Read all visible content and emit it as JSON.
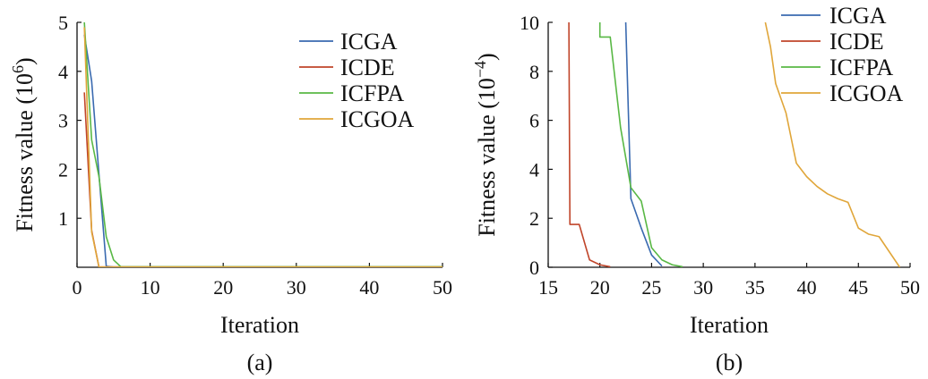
{
  "chart_data": [
    {
      "type": "line",
      "caption": "(a)",
      "xlabel": "Iteration",
      "ylabel": "Fitness value (10",
      "ylabel_exp": "6",
      "ylabel_close": ")",
      "xlim": [
        0,
        50
      ],
      "ylim": [
        0,
        5
      ],
      "xticks": [
        0,
        10,
        20,
        30,
        40,
        50
      ],
      "yticks": [
        1,
        2,
        3,
        4,
        5
      ],
      "grid": false,
      "legend": "top-right",
      "series": [
        {
          "name": "ICGA",
          "color": "#3a6ab0",
          "points": [
            [
              1,
              4.75
            ],
            [
              2,
              3.8
            ],
            [
              3,
              1.9
            ],
            [
              4,
              0.02
            ],
            [
              5,
              0.005
            ],
            [
              50,
              0.005
            ]
          ]
        },
        {
          "name": "ICDE",
          "color": "#c0452a",
          "points": [
            [
              1,
              3.57
            ],
            [
              2,
              0.75
            ],
            [
              3,
              0.005
            ],
            [
              50,
              0.005
            ]
          ]
        },
        {
          "name": "ICFPA",
          "color": "#59b845",
          "points": [
            [
              1,
              5.0
            ],
            [
              2,
              2.6
            ],
            [
              3,
              1.85
            ],
            [
              4,
              0.62
            ],
            [
              5,
              0.15
            ],
            [
              6,
              0.01
            ],
            [
              50,
              0.01
            ]
          ]
        },
        {
          "name": "ICGOA",
          "color": "#e0a63a",
          "points": [
            [
              1,
              4.9
            ],
            [
              2,
              0.72
            ],
            [
              3,
              0.005
            ],
            [
              50,
              0.005
            ]
          ]
        }
      ]
    },
    {
      "type": "line",
      "caption": "(b)",
      "xlabel": "Iteration",
      "ylabel": "Fitness value (10",
      "ylabel_exp": "−4",
      "ylabel_close": ")",
      "xlim": [
        15,
        50
      ],
      "ylim": [
        0,
        10
      ],
      "xticks": [
        15,
        20,
        25,
        30,
        35,
        40,
        45,
        50
      ],
      "yticks": [
        0,
        2,
        4,
        6,
        8,
        10
      ],
      "grid": false,
      "legend": "top-right",
      "series": [
        {
          "name": "ICGA",
          "color": "#3a6ab0",
          "points": [
            [
              22.5,
              10
            ],
            [
              23,
              2.8
            ],
            [
              24,
              1.6
            ],
            [
              25,
              0.5
            ],
            [
              26,
              0.05
            ]
          ]
        },
        {
          "name": "ICDE",
          "color": "#c0452a",
          "points": [
            [
              17,
              10
            ],
            [
              17.1,
              1.75
            ],
            [
              18,
              1.75
            ],
            [
              19,
              0.3
            ],
            [
              20,
              0.1
            ],
            [
              21,
              0.02
            ]
          ]
        },
        {
          "name": "ICFPA",
          "color": "#59b845",
          "points": [
            [
              20,
              10
            ],
            [
              20,
              9.4
            ],
            [
              21,
              9.4
            ],
            [
              22,
              5.7
            ],
            [
              23,
              3.25
            ],
            [
              24,
              2.7
            ],
            [
              25,
              0.8
            ],
            [
              26,
              0.3
            ],
            [
              27,
              0.1
            ],
            [
              28,
              0.02
            ]
          ]
        },
        {
          "name": "ICGOA",
          "color": "#e0a63a",
          "points": [
            [
              36,
              10
            ],
            [
              36.5,
              9.0
            ],
            [
              37,
              7.5
            ],
            [
              38,
              6.3
            ],
            [
              39,
              4.25
            ],
            [
              40,
              3.7
            ],
            [
              41,
              3.3
            ],
            [
              42,
              3.0
            ],
            [
              43,
              2.8
            ],
            [
              44,
              2.65
            ],
            [
              45,
              1.6
            ],
            [
              46,
              1.35
            ],
            [
              47,
              1.25
            ],
            [
              49,
              0
            ]
          ]
        }
      ]
    }
  ]
}
